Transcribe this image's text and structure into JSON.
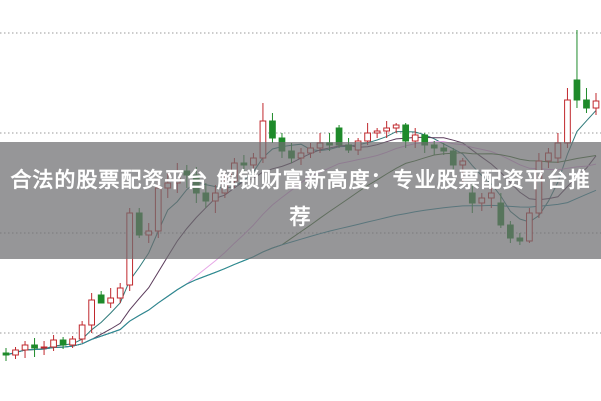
{
  "title": "合法的股票配资平台 解锁财富新高度：专业股票配资平台推荐",
  "chart_data": {
    "type": "candlestick",
    "title": "",
    "xlabel": "",
    "ylabel": "",
    "ylim": [
      0.32,
      4.33
    ],
    "gridlines": [
      1,
      2,
      3,
      4
    ],
    "grid": "horizontal-dotted",
    "up_color": "#c0282d",
    "down_color": "#1e8a2a",
    "ohlc": [
      [
        0.8,
        0.85,
        0.72,
        0.78
      ],
      [
        0.78,
        0.86,
        0.74,
        0.83
      ],
      [
        0.83,
        0.92,
        0.75,
        0.88
      ],
      [
        0.88,
        0.95,
        0.76,
        0.85
      ],
      [
        0.85,
        0.92,
        0.78,
        0.86
      ],
      [
        0.86,
        0.98,
        0.82,
        0.93
      ],
      [
        0.93,
        0.96,
        0.84,
        0.88
      ],
      [
        0.88,
        0.97,
        0.85,
        0.94
      ],
      [
        0.94,
        1.12,
        0.9,
        1.08
      ],
      [
        1.08,
        1.4,
        1.0,
        1.33
      ],
      [
        1.38,
        1.42,
        1.3,
        1.3
      ],
      [
        1.3,
        1.45,
        1.25,
        1.35
      ],
      [
        1.35,
        1.5,
        1.3,
        1.45
      ],
      [
        1.48,
        2.25,
        1.42,
        2.2
      ],
      [
        2.2,
        2.25,
        1.95,
        1.98
      ],
      [
        1.98,
        2.1,
        1.9,
        2.02
      ],
      [
        2.02,
        2.52,
        1.95,
        2.45
      ],
      [
        2.45,
        2.6,
        2.35,
        2.5
      ],
      [
        2.5,
        2.7,
        2.4,
        2.62
      ],
      [
        2.62,
        2.68,
        2.45,
        2.58
      ],
      [
        2.58,
        2.66,
        2.3,
        2.4
      ],
      [
        2.4,
        2.5,
        2.25,
        2.32
      ],
      [
        2.32,
        2.48,
        2.2,
        2.4
      ],
      [
        2.4,
        2.6,
        2.35,
        2.52
      ],
      [
        2.52,
        2.75,
        2.45,
        2.7
      ],
      [
        2.7,
        2.78,
        2.6,
        2.68
      ],
      [
        2.68,
        2.8,
        2.62,
        2.75
      ],
      [
        2.75,
        3.3,
        2.7,
        3.12
      ],
      [
        3.12,
        3.2,
        2.9,
        2.95
      ],
      [
        2.95,
        3.0,
        2.75,
        2.82
      ],
      [
        2.82,
        2.9,
        2.7,
        2.75
      ],
      [
        2.75,
        2.85,
        2.68,
        2.8
      ],
      [
        2.8,
        2.9,
        2.75,
        2.85
      ],
      [
        2.85,
        3.0,
        2.8,
        2.9
      ],
      [
        2.9,
        3.0,
        2.82,
        2.88
      ],
      [
        3.05,
        3.08,
        2.85,
        2.88
      ],
      [
        2.88,
        2.95,
        2.8,
        2.83
      ],
      [
        2.83,
        2.95,
        2.78,
        2.92
      ],
      [
        2.92,
        3.1,
        2.88,
        3.0
      ],
      [
        3.0,
        3.05,
        2.95,
        3.02
      ],
      [
        3.02,
        3.12,
        2.95,
        3.05
      ],
      [
        3.05,
        3.1,
        3.0,
        3.08
      ],
      [
        3.08,
        3.1,
        2.85,
        2.92
      ],
      [
        2.92,
        3.05,
        2.85,
        2.98
      ],
      [
        2.98,
        3.0,
        2.8,
        2.88
      ],
      [
        2.88,
        2.92,
        2.78,
        2.85
      ],
      [
        2.85,
        2.9,
        2.78,
        2.82
      ],
      [
        2.82,
        2.85,
        2.6,
        2.68
      ],
      [
        2.68,
        2.75,
        2.5,
        2.72
      ],
      [
        2.4,
        2.5,
        2.2,
        2.3
      ],
      [
        2.3,
        2.4,
        2.22,
        2.35
      ],
      [
        2.35,
        2.45,
        2.25,
        2.4
      ],
      [
        2.3,
        2.4,
        2.05,
        2.08
      ],
      [
        2.08,
        2.12,
        1.9,
        1.95
      ],
      [
        1.95,
        2.0,
        1.88,
        1.92
      ],
      [
        1.92,
        2.25,
        1.9,
        2.2
      ],
      [
        2.2,
        2.8,
        2.15,
        2.72
      ],
      [
        2.72,
        2.85,
        2.65,
        2.8
      ],
      [
        2.75,
        3.0,
        2.7,
        2.9
      ],
      [
        2.9,
        3.45,
        2.85,
        3.33
      ],
      [
        3.53,
        4.03,
        3.25,
        3.33
      ],
      [
        3.33,
        3.45,
        3.2,
        3.25
      ],
      [
        3.25,
        3.4,
        3.18,
        3.32
      ]
    ],
    "moving_averages": [
      {
        "period": 5,
        "color": "#2f7a7a"
      },
      {
        "period": 10,
        "color": "#5a3a5a"
      },
      {
        "period": 20,
        "color": "#e6a6e6"
      },
      {
        "period": 30,
        "color": "#3f6f2f"
      },
      {
        "period": 60,
        "color": "#2a8c9c"
      }
    ]
  }
}
